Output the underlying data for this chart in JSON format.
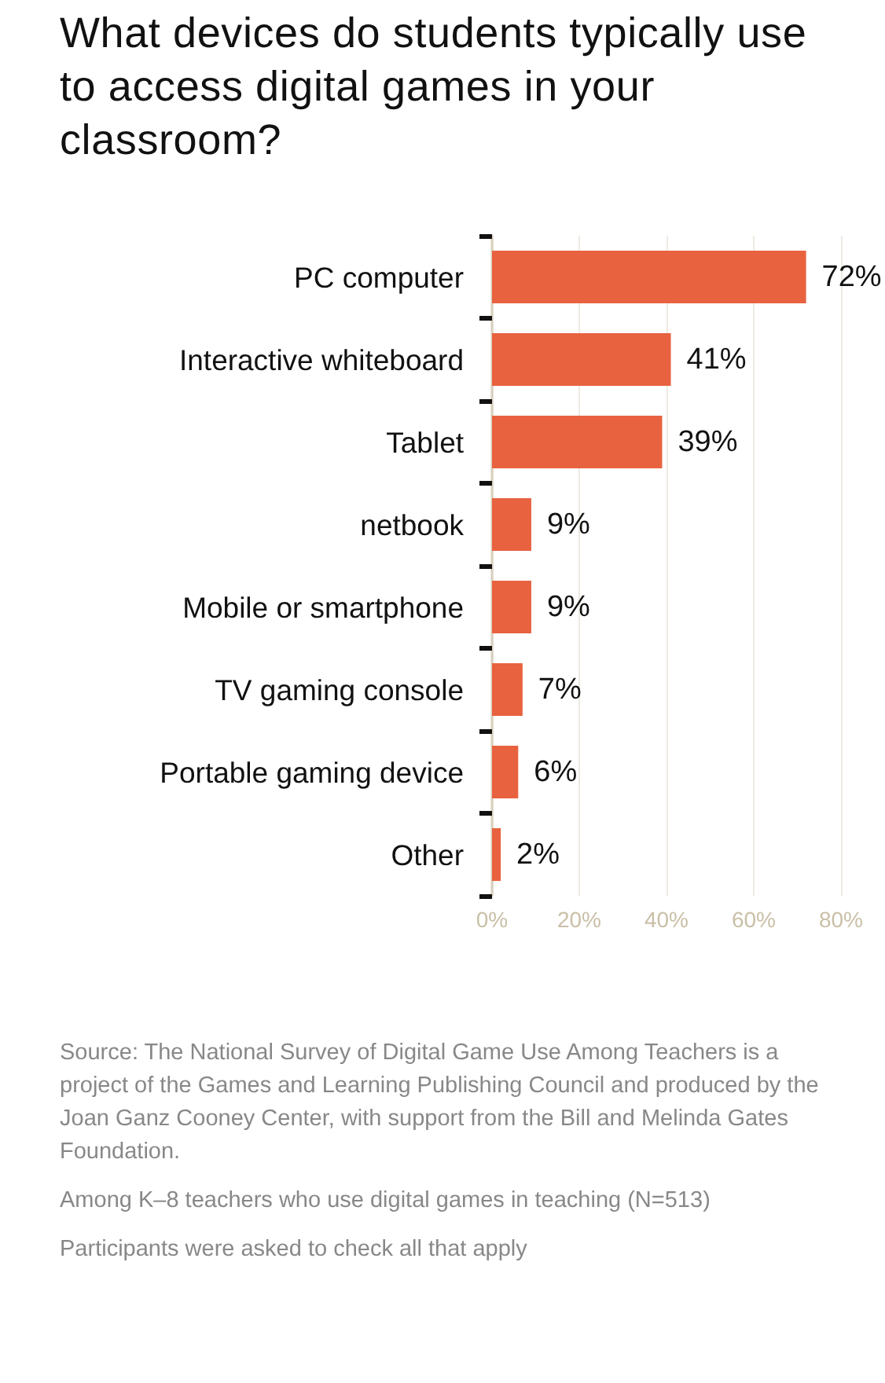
{
  "chart_data": {
    "type": "bar",
    "orientation": "horizontal",
    "title": "What devices do students typically use to access digital games in your classroom?",
    "categories": [
      "PC computer",
      "Interactive whiteboard",
      "Tablet",
      "netbook",
      "Mobile or smartphone",
      "TV gaming console",
      "Portable gaming device",
      "Other"
    ],
    "values": [
      72,
      41,
      39,
      9,
      9,
      7,
      6,
      2
    ],
    "value_labels": [
      "72%",
      "41%",
      "39%",
      "9%",
      "9%",
      "7%",
      "6%",
      "2%"
    ],
    "color": "#e8623f",
    "xlim": [
      0,
      80
    ],
    "xticks": [
      {
        "value": 0,
        "label": "0%"
      },
      {
        "value": 20,
        "label": "20%"
      },
      {
        "value": 40,
        "label": "40%"
      },
      {
        "value": 60,
        "label": "60%"
      },
      {
        "value": 80,
        "label": "80%"
      }
    ],
    "grid": "x",
    "annotations": [
      "Source: The National Survey of Digital Game Use Among Teachers is a project of the Games and Learning Publishing Council and produced by the Joan Ganz Cooney Center, with support from the Bill and Melinda Gates Foundation.",
      "Among K–8 teachers who use digital games in teaching (N=513)",
      "Participants were asked to check all that apply"
    ]
  }
}
